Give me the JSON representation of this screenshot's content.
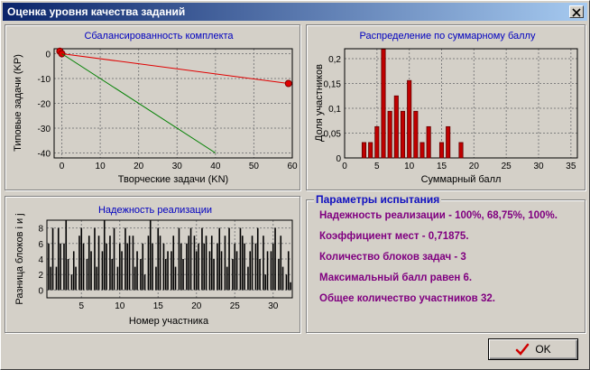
{
  "window": {
    "title": "Оценка уровня качества заданий"
  },
  "colors": {
    "title_color": "#0000c0",
    "params_color": "#800080",
    "params_title_color": "#1010c0",
    "bar_fill": "#c00000",
    "line_red": "#e00000",
    "line_green": "#008000"
  },
  "charts": {
    "balance": {
      "title": "Сбалансированность комплекта"
    },
    "distribution": {
      "title": "Распределение по суммарному баллу"
    },
    "reliability": {
      "title": "Надежность реализации"
    }
  },
  "params": {
    "title": "Параметры испытания",
    "lines": [
      "Надежность реализации - 100%, 68,75%, 100%.",
      "Коэффициент мест - 0,71875.",
      "Количество блоков задач - 3",
      "Максимальный балл равен 6.",
      "Общее количество участников 32."
    ]
  },
  "ok_button": {
    "label": "OK",
    "icon": "checkmark-icon"
  },
  "chart_data": [
    {
      "type": "line",
      "title": "Сбалансированность комплекта",
      "xlabel": "Творческие задачи (KN)",
      "ylabel": "Типовые задачи (KP)",
      "xlim": [
        -2,
        60
      ],
      "ylim": [
        -42,
        2
      ],
      "x_ticks": [
        0,
        10,
        20,
        30,
        40,
        50,
        60
      ],
      "y_ticks": [
        0,
        -10,
        -20,
        -30,
        -40
      ],
      "grid": true,
      "series": [
        {
          "color": "#e00000",
          "x": [
            0,
            59
          ],
          "y": [
            0,
            -12
          ],
          "markers": [
            [
              -0.5,
              1
            ],
            [
              0,
              0
            ],
            [
              59,
              -12
            ]
          ]
        },
        {
          "color": "#008000",
          "x": [
            0,
            40
          ],
          "y": [
            0,
            -40
          ]
        }
      ]
    },
    {
      "type": "bar",
      "title": "Распределение по суммарному баллу",
      "xlabel": "Суммарный балл",
      "ylabel": "Доля участников",
      "xlim": [
        0,
        36
      ],
      "ylim": [
        0,
        0.22
      ],
      "x_ticks": [
        0,
        5,
        10,
        15,
        20,
        25,
        30,
        35
      ],
      "y_ticks": [
        0,
        0.05,
        0.1,
        0.15,
        0.2
      ],
      "y_tick_labels": [
        "0",
        "0,05",
        "0,1",
        "0,15",
        "0,2"
      ],
      "grid": true,
      "x": [
        3,
        4,
        5,
        6,
        7,
        8,
        9,
        10,
        11,
        12,
        13,
        15,
        16,
        18
      ],
      "values": [
        0.031,
        0.031,
        0.063,
        0.219,
        0.094,
        0.125,
        0.094,
        0.156,
        0.094,
        0.031,
        0.063,
        0.031,
        0.063,
        0.031
      ]
    },
    {
      "type": "bar",
      "title": "Надежность реализации",
      "xlabel": "Номер участника",
      "ylabel": "Разница блоков i и j",
      "xlim": [
        0.5,
        32.5
      ],
      "ylim": [
        -1,
        9
      ],
      "x_ticks": [
        5,
        10,
        15,
        20,
        25,
        30
      ],
      "y_ticks": [
        0,
        2,
        4,
        6,
        8
      ],
      "grid": true,
      "groups": [
        [
          6,
          3,
          8
        ],
        [
          3,
          8,
          6
        ],
        [
          6,
          9,
          4
        ],
        [
          2,
          5,
          3
        ],
        [
          7,
          8,
          6
        ],
        [
          4,
          7,
          5
        ],
        [
          8,
          3,
          7
        ],
        [
          5,
          9,
          6
        ],
        [
          7,
          4,
          8
        ],
        [
          3,
          6,
          5
        ],
        [
          8,
          6,
          7
        ],
        [
          7,
          3,
          5
        ],
        [
          4,
          6,
          2
        ],
        [
          7,
          9,
          6
        ],
        [
          3,
          8,
          7
        ],
        [
          6,
          4,
          5
        ],
        [
          5,
          7,
          3
        ],
        [
          8,
          6,
          4
        ],
        [
          6,
          7,
          8
        ],
        [
          7,
          5,
          6
        ],
        [
          8,
          6,
          7
        ],
        [
          5,
          7,
          4
        ],
        [
          6,
          8,
          5
        ],
        [
          7,
          3,
          8
        ],
        [
          4,
          6,
          5
        ],
        [
          8,
          7,
          6
        ],
        [
          3,
          5,
          7
        ],
        [
          6,
          8,
          4
        ],
        [
          7,
          2,
          5
        ],
        [
          5,
          6,
          8
        ],
        [
          4,
          7,
          3
        ],
        [
          2,
          5,
          1
        ]
      ]
    }
  ]
}
